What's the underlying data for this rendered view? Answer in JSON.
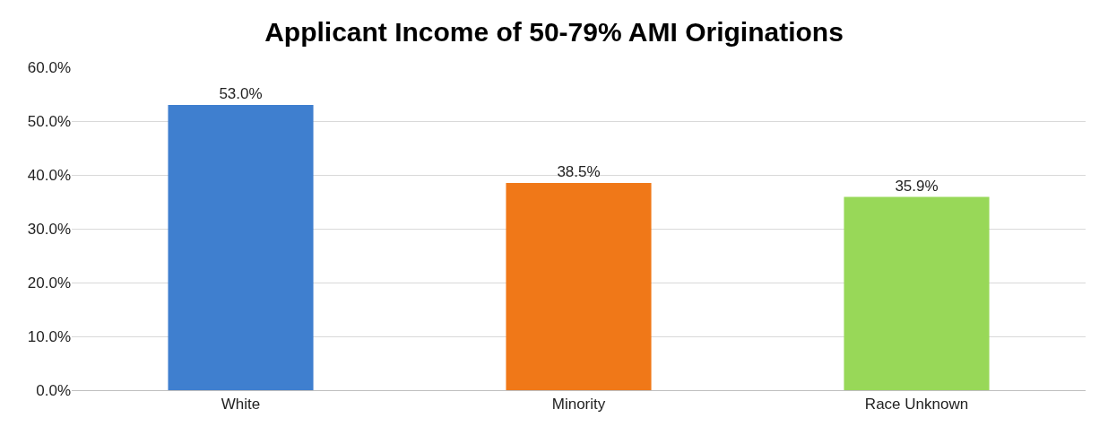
{
  "chart_data": {
    "type": "bar",
    "title": "Applicant Income of 50-79% AMI Originations",
    "categories": [
      "White",
      "Minority",
      "Race Unknown"
    ],
    "values": [
      53.0,
      38.5,
      35.9
    ],
    "colors": [
      "#3f7fcf",
      "#f07818",
      "#98d858"
    ],
    "value_labels": [
      "53.0%",
      "38.5%",
      "35.9%"
    ],
    "ylim": [
      0,
      60
    ],
    "yticks": [
      {
        "value": 0,
        "label": "0.0%"
      },
      {
        "value": 10,
        "label": "10.0%"
      },
      {
        "value": 20,
        "label": "20.0%"
      },
      {
        "value": 30,
        "label": "30.0%"
      },
      {
        "value": 40,
        "label": "40.0%"
      },
      {
        "value": 50,
        "label": "50.0%"
      },
      {
        "value": 60,
        "label": "60.0%"
      }
    ],
    "grid": "y"
  }
}
